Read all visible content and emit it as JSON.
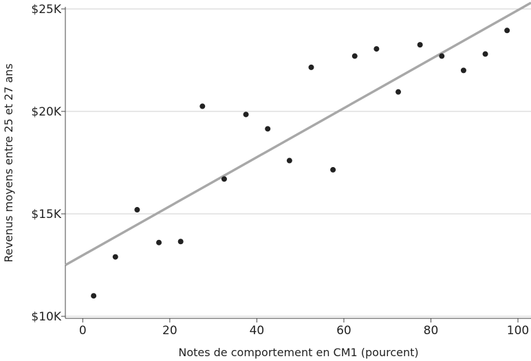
{
  "chart_data": {
    "type": "scatter",
    "title": "",
    "xlabel": "Notes de comportement en CM1 (pourcent)",
    "ylabel": "Revenus moyens entre 25 et 27 ans",
    "xlim": [
      -4,
      103
    ],
    "ylim": [
      9900,
      25100
    ],
    "x_ticks": [
      0,
      20,
      40,
      60,
      80,
      100
    ],
    "x_tick_labels": [
      "0",
      "20",
      "40",
      "60",
      "80",
      "100"
    ],
    "y_ticks": [
      10000,
      15000,
      20000,
      25000
    ],
    "y_tick_labels": [
      "$10K",
      "$15K",
      "$20K",
      "$25K"
    ],
    "grid": "horizontal",
    "legend": "none",
    "colors": {
      "points": "#222222",
      "fit_line": "#a8a8a8",
      "grid": "#cfcfcf",
      "axis": "#444444"
    },
    "series": [
      {
        "x": [
          2.5,
          7.5,
          12.5,
          17.5,
          22.5,
          27.5,
          32.5,
          37.5,
          42.5,
          47.5,
          52.5,
          57.5,
          62.5,
          67.5,
          72.5,
          77.5,
          82.5,
          87.5,
          92.5,
          97.5
        ],
        "y": [
          11000,
          12900,
          15200,
          13600,
          13650,
          20250,
          16700,
          19850,
          19150,
          17600,
          22150,
          17150,
          22700,
          23050,
          20950,
          23250,
          22700,
          22000,
          22800,
          23950
        ]
      }
    ],
    "fit_line": {
      "x": [
        -4,
        103
      ],
      "y": [
        12500,
        25300
      ]
    }
  }
}
